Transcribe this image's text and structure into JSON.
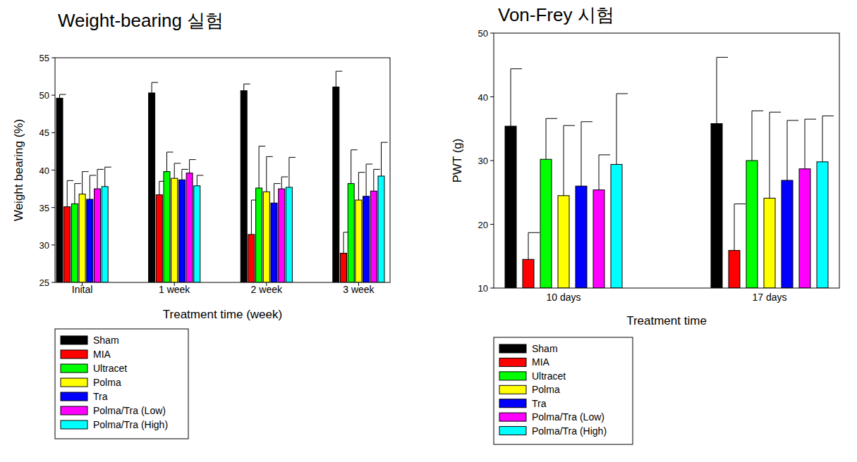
{
  "chart_data": [
    {
      "type": "bar",
      "title": "Weight-bearing 실험",
      "x_label": "Treatment time (week)",
      "y_label": "Weight bearing (%)",
      "categories": [
        "Inital",
        "1 week",
        "2 week",
        "3 week"
      ],
      "ylim": [
        25,
        55
      ],
      "yticks": [
        25,
        30,
        35,
        40,
        45,
        50,
        55
      ],
      "series": [
        {
          "name": "Sham",
          "color": "#000000",
          "values": [
            49.6,
            50.3,
            50.6,
            51.1
          ],
          "errors": [
            0.5,
            1.4,
            0.9,
            2.1
          ]
        },
        {
          "name": "MIA",
          "color": "#ff0000",
          "values": [
            35.1,
            36.7,
            31.4,
            28.9
          ],
          "errors": [
            3.5,
            1.8,
            4.6,
            2.8
          ]
        },
        {
          "name": "Ultracet",
          "color": "#00ff00",
          "values": [
            35.5,
            39.8,
            37.6,
            38.2
          ],
          "errors": [
            2.7,
            2.6,
            5.6,
            4.5
          ]
        },
        {
          "name": "Polma",
          "color": "#ffff00",
          "values": [
            36.8,
            38.9,
            37.1,
            36.0
          ],
          "errors": [
            3.0,
            2.0,
            4.7,
            3.7
          ]
        },
        {
          "name": "Tra",
          "color": "#0000ff",
          "values": [
            36.1,
            38.7,
            35.6,
            36.5
          ],
          "errors": [
            3.2,
            1.4,
            2.6,
            4.3
          ]
        },
        {
          "name": "Polma/Tra (Low)",
          "color": "#ff00ff",
          "values": [
            37.5,
            39.6,
            37.5,
            37.2
          ],
          "errors": [
            2.6,
            1.8,
            1.6,
            2.9
          ]
        },
        {
          "name": "Polma/Tra (High)",
          "color": "#00ffff",
          "values": [
            37.8,
            37.9,
            37.7,
            39.2
          ],
          "errors": [
            2.6,
            1.4,
            4.0,
            4.5
          ]
        }
      ]
    },
    {
      "type": "bar",
      "title": "Von-Frey 시험",
      "x_label": "Treatment time",
      "y_label": "PWT (g)",
      "categories": [
        "10 days",
        "17 days"
      ],
      "ylim": [
        10,
        50
      ],
      "yticks": [
        10,
        20,
        30,
        40,
        50
      ],
      "series": [
        {
          "name": "Sham",
          "color": "#000000",
          "values": [
            35.4,
            35.8
          ],
          "errors": [
            9.0,
            10.4
          ]
        },
        {
          "name": "MIA",
          "color": "#ff0000",
          "values": [
            14.5,
            15.9
          ],
          "errors": [
            4.2,
            7.3
          ]
        },
        {
          "name": "Ultracet",
          "color": "#00ff00",
          "values": [
            30.2,
            30.0
          ],
          "errors": [
            6.4,
            7.8
          ]
        },
        {
          "name": "Polma",
          "color": "#ffff00",
          "values": [
            24.5,
            24.1
          ],
          "errors": [
            11.0,
            13.5
          ]
        },
        {
          "name": "Tra",
          "color": "#0000ff",
          "values": [
            26.0,
            26.9
          ],
          "errors": [
            10.1,
            9.4
          ]
        },
        {
          "name": "Polma/Tra (Low)",
          "color": "#ff00ff",
          "values": [
            25.4,
            28.7
          ],
          "errors": [
            5.5,
            7.8
          ]
        },
        {
          "name": "Polma/Tra (High)",
          "color": "#00ffff",
          "values": [
            29.4,
            29.8
          ],
          "errors": [
            11.1,
            7.2
          ]
        }
      ]
    }
  ]
}
